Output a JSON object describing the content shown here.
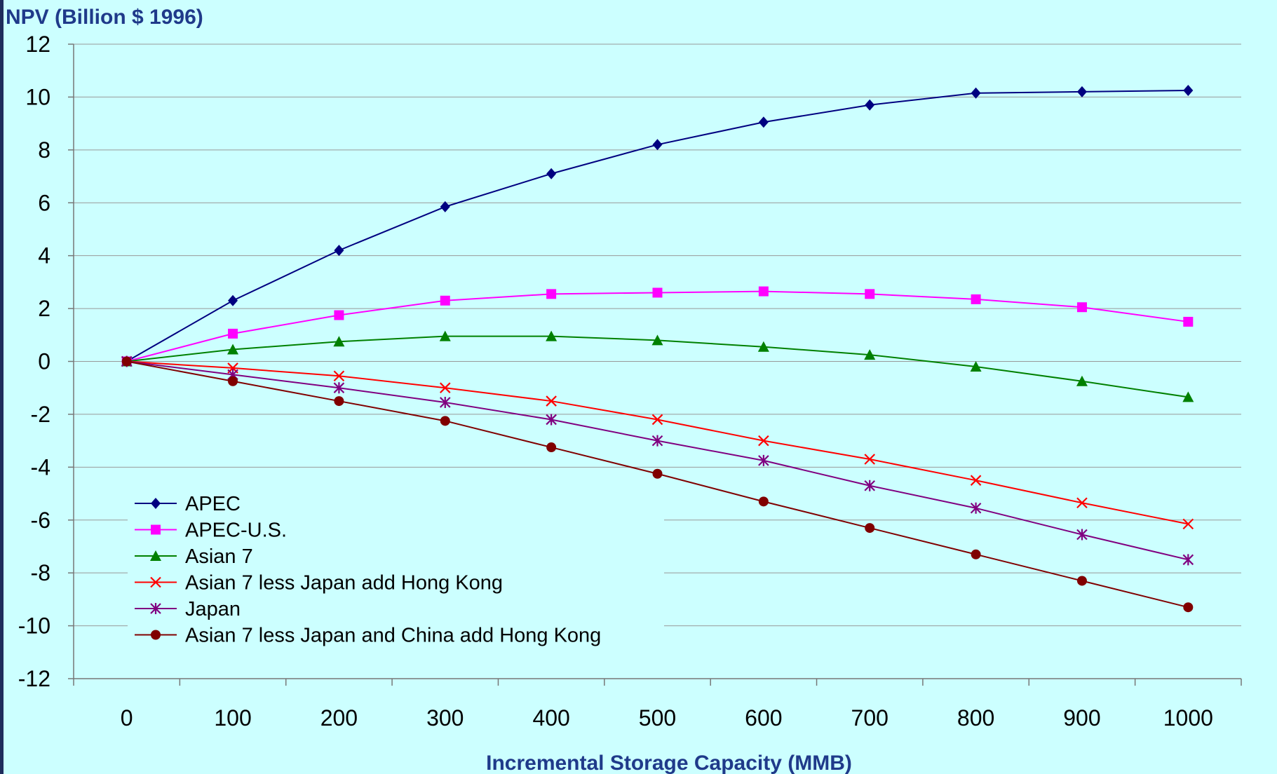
{
  "chart_data": {
    "type": "line",
    "ylabel": "NPV (Billion $ 1996)",
    "xlabel": "Incremental Storage Capacity (MMB)",
    "x": [
      0,
      100,
      200,
      300,
      400,
      500,
      600,
      700,
      800,
      900,
      1000
    ],
    "xlim": [
      -50,
      1050
    ],
    "ylim": [
      -12,
      12
    ],
    "yticks": [
      12,
      10,
      8,
      6,
      4,
      2,
      0,
      -2,
      -4,
      -6,
      -8,
      -10,
      -12
    ],
    "grid": true,
    "legend_position": "bottom-left",
    "series": [
      {
        "name": "APEC",
        "color": "#000080",
        "marker": "diamond",
        "values": [
          0,
          2.3,
          4.2,
          5.85,
          7.1,
          8.2,
          9.05,
          9.7,
          10.15,
          10.2,
          10.25
        ]
      },
      {
        "name": "APEC-U.S.",
        "color": "#ff00ff",
        "marker": "square",
        "values": [
          0,
          1.05,
          1.75,
          2.3,
          2.55,
          2.6,
          2.65,
          2.55,
          2.35,
          2.05,
          1.5
        ]
      },
      {
        "name": "Asian 7",
        "color": "#008000",
        "marker": "triangle",
        "values": [
          0,
          0.45,
          0.75,
          0.95,
          0.95,
          0.8,
          0.55,
          0.25,
          -0.2,
          -0.75,
          -1.35
        ]
      },
      {
        "name": "Asian 7 less Japan add Hong Kong",
        "color": "#ff0000",
        "marker": "x",
        "values": [
          0,
          -0.25,
          -0.55,
          -1.0,
          -1.5,
          -2.2,
          -3.0,
          -3.7,
          -4.5,
          -5.35,
          -6.15
        ]
      },
      {
        "name": "Japan",
        "color": "#800080",
        "marker": "asterisk",
        "values": [
          0,
          -0.5,
          -1.0,
          -1.55,
          -2.2,
          -3.0,
          -3.75,
          -4.7,
          -5.55,
          -6.55,
          -7.5
        ]
      },
      {
        "name": "Asian 7 less Japan and China add Hong Kong",
        "color": "#800000",
        "marker": "circle",
        "values": [
          0,
          -0.75,
          -1.5,
          -2.25,
          -3.25,
          -4.25,
          -5.3,
          -6.3,
          -7.3,
          -8.3,
          -9.3
        ]
      }
    ]
  }
}
